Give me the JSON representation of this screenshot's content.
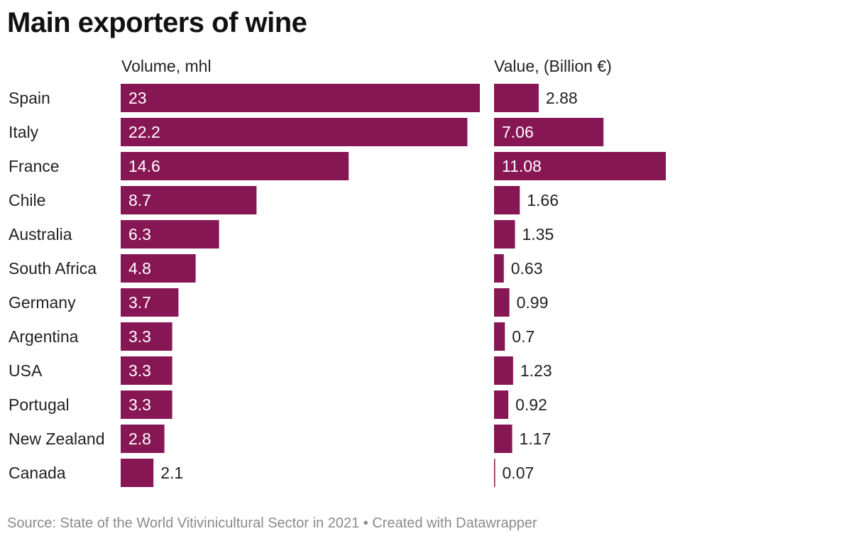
{
  "title": "Main exporters of wine",
  "colors": {
    "bar": "#871654",
    "label_inside": "#ffffff",
    "label_outside": "#222222",
    "footer": "#8a8a8a"
  },
  "chart_data": {
    "type": "bar",
    "orientation": "horizontal",
    "categories": [
      "Spain",
      "Italy",
      "France",
      "Chile",
      "Australia",
      "South Africa",
      "Germany",
      "Argentina",
      "USA",
      "Portugal",
      "New Zealand",
      "Canada"
    ],
    "series": [
      {
        "name": "Volume, mhl",
        "values": [
          23,
          22.2,
          14.6,
          8.7,
          6.3,
          4.8,
          3.7,
          3.3,
          3.3,
          3.3,
          2.8,
          2.1
        ],
        "labels": [
          "23",
          "22.2",
          "14.6",
          "8.7",
          "6.3",
          "4.8",
          "3.7",
          "3.3",
          "3.3",
          "3.3",
          "2.8",
          "2.1"
        ],
        "xlim": [
          0,
          23
        ]
      },
      {
        "name": "Value, (Billion €)",
        "values": [
          2.88,
          7.06,
          11.08,
          1.66,
          1.35,
          0.63,
          0.99,
          0.7,
          1.23,
          0.92,
          1.17,
          0.07
        ],
        "labels": [
          "2.88",
          "7.06",
          "11.08",
          "1.66",
          "1.35",
          "0.63",
          "0.99",
          "0.7",
          "1.23",
          "0.92",
          "1.17",
          "0.07"
        ],
        "xlim": [
          0,
          11.08
        ]
      }
    ],
    "grid": false,
    "legend": "none"
  },
  "footer": {
    "source": "Source: State of the World Vitivinicultural Sector in 2021",
    "separator": "•",
    "credit": "Created with Datawrapper"
  }
}
